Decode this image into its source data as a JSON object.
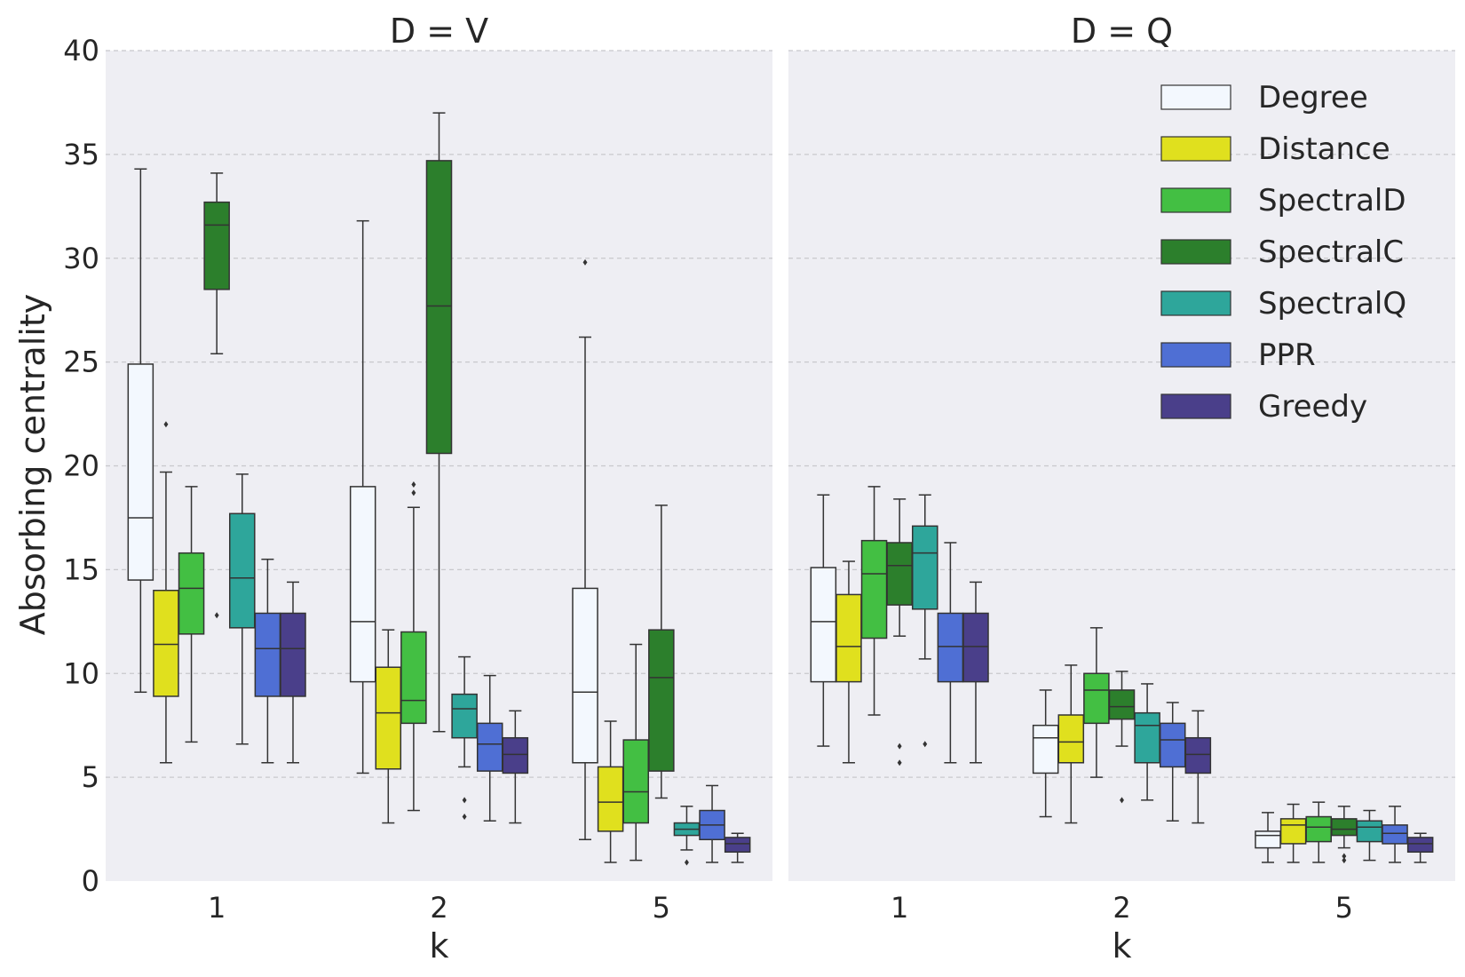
{
  "chart_data": {
    "type": "box",
    "ylabel": "Absorbing centrality",
    "xlabel": "k",
    "ylim": [
      0,
      40
    ],
    "yticks": [
      0,
      5,
      10,
      15,
      20,
      25,
      30,
      35,
      40
    ],
    "grid": "horizontal dashed",
    "legend_position": "top-right of right panel",
    "series": [
      {
        "name": "Degree",
        "color": "#f3f8fe"
      },
      {
        "name": "Distance",
        "color": "#e0e01e"
      },
      {
        "name": "SpectralD",
        "color": "#43bf43"
      },
      {
        "name": "SpectralC",
        "color": "#2c7f2c"
      },
      {
        "name": "SpectralQ",
        "color": "#2ea69b"
      },
      {
        "name": "PPR",
        "color": "#4f6fd4"
      },
      {
        "name": "Greedy",
        "color": "#4a3f8a"
      }
    ],
    "panels": [
      {
        "title": "D = V",
        "categories": [
          "1",
          "2",
          "5"
        ],
        "groups": [
          [
            {
              "series": "Degree",
              "whislo": 9.1,
              "q1": 14.5,
              "med": 17.5,
              "q3": 24.9,
              "whishi": 34.3,
              "fliers": []
            },
            {
              "series": "Distance",
              "whislo": 5.7,
              "q1": 8.9,
              "med": 11.4,
              "q3": 14.0,
              "whishi": 19.7,
              "fliers": [
                22.0
              ]
            },
            {
              "series": "SpectralD",
              "whislo": 6.7,
              "q1": 11.9,
              "med": 14.1,
              "q3": 15.8,
              "whishi": 19.0,
              "fliers": []
            },
            {
              "series": "SpectralC",
              "whislo": 25.4,
              "q1": 28.5,
              "med": 31.6,
              "q3": 32.7,
              "whishi": 34.1,
              "fliers": [
                12.8
              ]
            },
            {
              "series": "SpectralQ",
              "whislo": 6.6,
              "q1": 12.2,
              "med": 14.6,
              "q3": 17.7,
              "whishi": 19.6,
              "fliers": []
            },
            {
              "series": "PPR",
              "whislo": 5.7,
              "q1": 8.9,
              "med": 11.2,
              "q3": 12.9,
              "whishi": 15.5,
              "fliers": []
            },
            {
              "series": "Greedy",
              "whislo": 5.7,
              "q1": 8.9,
              "med": 11.2,
              "q3": 12.9,
              "whishi": 14.4,
              "fliers": []
            }
          ],
          [
            {
              "series": "Degree",
              "whislo": 5.2,
              "q1": 9.6,
              "med": 12.5,
              "q3": 19.0,
              "whishi": 31.8,
              "fliers": []
            },
            {
              "series": "Distance",
              "whislo": 2.8,
              "q1": 5.4,
              "med": 8.1,
              "q3": 10.3,
              "whishi": 12.1,
              "fliers": []
            },
            {
              "series": "SpectralD",
              "whislo": 3.4,
              "q1": 7.6,
              "med": 8.7,
              "q3": 12.0,
              "whishi": 18.0,
              "fliers": [
                18.7,
                19.1
              ]
            },
            {
              "series": "SpectralC",
              "whislo": 7.2,
              "q1": 20.6,
              "med": 27.7,
              "q3": 34.7,
              "whishi": 37.0,
              "fliers": []
            },
            {
              "series": "SpectralQ",
              "whislo": 5.5,
              "q1": 6.9,
              "med": 8.3,
              "q3": 9.0,
              "whishi": 10.8,
              "fliers": [
                3.1,
                3.9
              ]
            },
            {
              "series": "PPR",
              "whislo": 2.9,
              "q1": 5.3,
              "med": 6.6,
              "q3": 7.6,
              "whishi": 9.9,
              "fliers": []
            },
            {
              "series": "Greedy",
              "whislo": 2.8,
              "q1": 5.2,
              "med": 6.1,
              "q3": 6.9,
              "whishi": 8.2,
              "fliers": []
            }
          ],
          [
            {
              "series": "Degree",
              "whislo": 2.0,
              "q1": 5.7,
              "med": 9.1,
              "q3": 14.1,
              "whishi": 26.2,
              "fliers": [
                29.8
              ]
            },
            {
              "series": "Distance",
              "whislo": 0.9,
              "q1": 2.4,
              "med": 3.8,
              "q3": 5.5,
              "whishi": 7.7,
              "fliers": []
            },
            {
              "series": "SpectralD",
              "whislo": 1.0,
              "q1": 2.8,
              "med": 4.3,
              "q3": 6.8,
              "whishi": 11.4,
              "fliers": []
            },
            {
              "series": "SpectralC",
              "whislo": 4.0,
              "q1": 5.3,
              "med": 9.8,
              "q3": 12.1,
              "whishi": 18.1,
              "fliers": []
            },
            {
              "series": "SpectralQ",
              "whislo": 1.5,
              "q1": 2.2,
              "med": 2.5,
              "q3": 2.8,
              "whishi": 3.6,
              "fliers": [
                0.9
              ]
            },
            {
              "series": "PPR",
              "whislo": 0.9,
              "q1": 2.0,
              "med": 2.7,
              "q3": 3.4,
              "whishi": 4.6,
              "fliers": []
            },
            {
              "series": "Greedy",
              "whislo": 0.9,
              "q1": 1.4,
              "med": 1.8,
              "q3": 2.1,
              "whishi": 2.3,
              "fliers": []
            }
          ]
        ]
      },
      {
        "title": "D = Q",
        "categories": [
          "1",
          "2",
          "5"
        ],
        "groups": [
          [
            {
              "series": "Degree",
              "whislo": 6.5,
              "q1": 9.6,
              "med": 12.5,
              "q3": 15.1,
              "whishi": 18.6,
              "fliers": []
            },
            {
              "series": "Distance",
              "whislo": 5.7,
              "q1": 9.6,
              "med": 11.3,
              "q3": 13.8,
              "whishi": 15.4,
              "fliers": []
            },
            {
              "series": "SpectralD",
              "whislo": 8.0,
              "q1": 11.7,
              "med": 14.8,
              "q3": 16.4,
              "whishi": 19.0,
              "fliers": []
            },
            {
              "series": "SpectralC",
              "whislo": 11.8,
              "q1": 13.3,
              "med": 15.2,
              "q3": 16.3,
              "whishi": 18.4,
              "fliers": [
                5.7,
                6.5
              ]
            },
            {
              "series": "SpectralQ",
              "whislo": 10.7,
              "q1": 13.1,
              "med": 15.8,
              "q3": 17.1,
              "whishi": 18.6,
              "fliers": [
                6.6
              ]
            },
            {
              "series": "PPR",
              "whislo": 5.7,
              "q1": 9.6,
              "med": 11.3,
              "q3": 12.9,
              "whishi": 16.3,
              "fliers": []
            },
            {
              "series": "Greedy",
              "whislo": 5.7,
              "q1": 9.6,
              "med": 11.3,
              "q3": 12.9,
              "whishi": 14.4,
              "fliers": []
            }
          ],
          [
            {
              "series": "Degree",
              "whislo": 3.1,
              "q1": 5.2,
              "med": 6.9,
              "q3": 7.5,
              "whishi": 9.2,
              "fliers": []
            },
            {
              "series": "Distance",
              "whislo": 2.8,
              "q1": 5.7,
              "med": 6.7,
              "q3": 8.0,
              "whishi": 10.4,
              "fliers": []
            },
            {
              "series": "SpectralD",
              "whislo": 5.0,
              "q1": 7.6,
              "med": 9.2,
              "q3": 10.0,
              "whishi": 12.2,
              "fliers": []
            },
            {
              "series": "SpectralC",
              "whislo": 6.5,
              "q1": 7.8,
              "med": 8.4,
              "q3": 9.2,
              "whishi": 10.1,
              "fliers": [
                3.9
              ]
            },
            {
              "series": "SpectralQ",
              "whislo": 3.9,
              "q1": 5.7,
              "med": 7.5,
              "q3": 8.1,
              "whishi": 9.5,
              "fliers": []
            },
            {
              "series": "PPR",
              "whislo": 2.9,
              "q1": 5.5,
              "med": 6.8,
              "q3": 7.6,
              "whishi": 8.6,
              "fliers": []
            },
            {
              "series": "Greedy",
              "whislo": 2.8,
              "q1": 5.2,
              "med": 6.1,
              "q3": 6.9,
              "whishi": 8.2,
              "fliers": []
            }
          ],
          [
            {
              "series": "Degree",
              "whislo": 0.9,
              "q1": 1.6,
              "med": 2.2,
              "q3": 2.4,
              "whishi": 3.3,
              "fliers": []
            },
            {
              "series": "Distance",
              "whislo": 0.9,
              "q1": 1.8,
              "med": 2.7,
              "q3": 3.0,
              "whishi": 3.7,
              "fliers": []
            },
            {
              "series": "SpectralD",
              "whislo": 0.9,
              "q1": 1.9,
              "med": 2.6,
              "q3": 3.1,
              "whishi": 3.8,
              "fliers": []
            },
            {
              "series": "SpectralC",
              "whislo": 1.6,
              "q1": 2.2,
              "med": 2.5,
              "q3": 3.0,
              "whishi": 3.6,
              "fliers": [
                1.0,
                1.2
              ]
            },
            {
              "series": "SpectralQ",
              "whislo": 1.0,
              "q1": 1.9,
              "med": 2.6,
              "q3": 2.9,
              "whishi": 3.4,
              "fliers": []
            },
            {
              "series": "PPR",
              "whislo": 0.9,
              "q1": 1.8,
              "med": 2.3,
              "q3": 2.7,
              "whishi": 3.6,
              "fliers": []
            },
            {
              "series": "Greedy",
              "whislo": 0.9,
              "q1": 1.4,
              "med": 1.8,
              "q3": 2.1,
              "whishi": 2.3,
              "fliers": []
            }
          ]
        ]
      }
    ]
  }
}
